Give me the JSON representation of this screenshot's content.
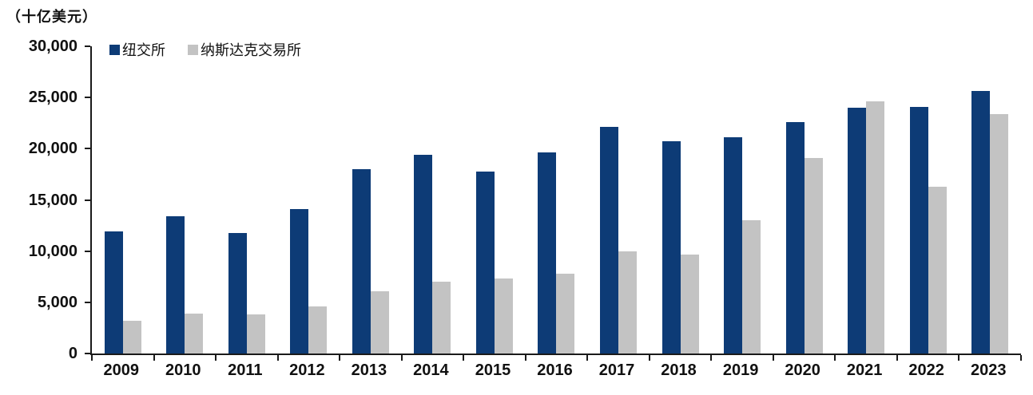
{
  "unit_label": "（十亿美元）",
  "chart_data": {
    "type": "bar",
    "title": "",
    "unit_label": "（十亿美元）",
    "categories": [
      "2009",
      "2010",
      "2011",
      "2012",
      "2013",
      "2014",
      "2015",
      "2016",
      "2017",
      "2018",
      "2019",
      "2020",
      "2021",
      "2022",
      "2023"
    ],
    "series": [
      {
        "name": "纽交所",
        "color": "#0d3b76",
        "values": [
          11900,
          13400,
          11800,
          14100,
          18000,
          19400,
          17800,
          19600,
          22100,
          20700,
          21100,
          22600,
          24000,
          24100,
          25600
        ]
      },
      {
        "name": "纳斯达克交易所",
        "color": "#c3c3c3",
        "values": [
          3200,
          3900,
          3850,
          4600,
          6100,
          7000,
          7300,
          7800,
          10000,
          9700,
          13000,
          19100,
          24600,
          16300,
          23400
        ]
      }
    ],
    "ylim": [
      0,
      30000
    ],
    "ytick_step": 5000,
    "ytick_labels": [
      "30,000",
      "25,000",
      "20,000",
      "15,000",
      "10,000",
      "5,000",
      "0"
    ],
    "grid": false,
    "legend_position": "top-left"
  }
}
